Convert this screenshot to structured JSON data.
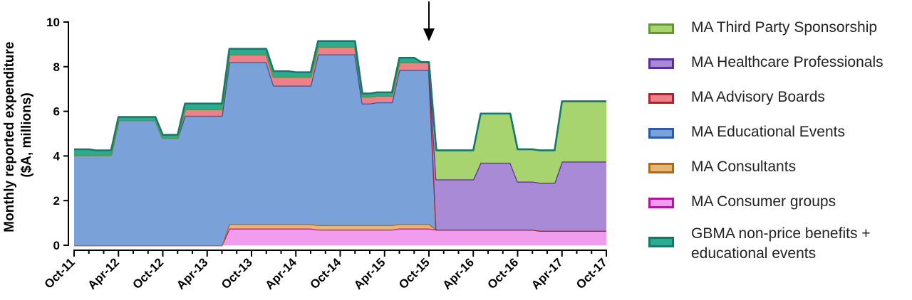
{
  "chart_data": {
    "type": "area",
    "stacked": true,
    "ylabel_line1": "Monthly reported expenditure",
    "ylabel_line2": "($A, millions)",
    "ylim": [
      0,
      10
    ],
    "yticks": [
      0,
      2,
      4,
      6,
      8,
      10
    ],
    "xtick_labels": [
      "Oct-11",
      "Apr-12",
      "Oct-12",
      "Apr-13",
      "Oct-13",
      "Apr-14",
      "Oct-14",
      "Apr-15",
      "Oct-15",
      "Apr-16",
      "Oct-16",
      "Apr-17",
      "Oct-17"
    ],
    "x_months": [
      0,
      1,
      2,
      3,
      4,
      5,
      6,
      7,
      8,
      9,
      10,
      11,
      12,
      13,
      14,
      15,
      16,
      17,
      18,
      19,
      20,
      21,
      22,
      23,
      24,
      25,
      26,
      27,
      28,
      29,
      30,
      31,
      32,
      33,
      34,
      35,
      36,
      37,
      38,
      39,
      40,
      41,
      42,
      43,
      44,
      45,
      46,
      47,
      48,
      49,
      50,
      51,
      52,
      53,
      54,
      55,
      56,
      57,
      58,
      59,
      60,
      61,
      62,
      63,
      64,
      65,
      66,
      67,
      68,
      69,
      70,
      71,
      72
    ],
    "annotation_arrow_at": "Oct-15",
    "legend_position": "right",
    "series": [
      {
        "name": "MA Consumer groups",
        "color": "#f19ded",
        "stroke": "#b8139e",
        "values": [
          0,
          0,
          0,
          0,
          0,
          0,
          0,
          0,
          0,
          0,
          0,
          0,
          0,
          0,
          0,
          0,
          0,
          0,
          0,
          0,
          0,
          0.75,
          0.75,
          0.75,
          0.75,
          0.75,
          0.75,
          0.75,
          0.75,
          0.75,
          0.75,
          0.75,
          0.75,
          0.7,
          0.7,
          0.7,
          0.7,
          0.7,
          0.7,
          0.7,
          0.7,
          0.7,
          0.7,
          0.7,
          0.75,
          0.75,
          0.75,
          0.75,
          0.75,
          0.7,
          0.7,
          0.7,
          0.7,
          0.7,
          0.7,
          0.7,
          0.7,
          0.7,
          0.7,
          0.7,
          0.7,
          0.7,
          0.7,
          0.65,
          0.65,
          0.65,
          0.65,
          0.65,
          0.65,
          0.65,
          0.65,
          0.65,
          0.65
        ]
      },
      {
        "name": "MA Consultants",
        "color": "#e7b676",
        "stroke": "#ad6a12",
        "values": [
          0,
          0,
          0,
          0,
          0,
          0,
          0,
          0,
          0,
          0,
          0,
          0,
          0,
          0,
          0,
          0,
          0,
          0,
          0,
          0,
          0,
          0.2,
          0.2,
          0.2,
          0.2,
          0.2,
          0.2,
          0.2,
          0.2,
          0.2,
          0.2,
          0.2,
          0.2,
          0.2,
          0.2,
          0.2,
          0.2,
          0.2,
          0.2,
          0.2,
          0.2,
          0.2,
          0.2,
          0.2,
          0.2,
          0.2,
          0.2,
          0.2,
          0.2,
          0,
          0,
          0,
          0,
          0,
          0,
          0,
          0,
          0,
          0,
          0,
          0,
          0,
          0,
          0,
          0,
          0,
          0,
          0,
          0,
          0,
          0,
          0,
          0
        ]
      },
      {
        "name": "MA Educational Events",
        "color": "#7ba2d8",
        "stroke": "#2b5aa6",
        "values": [
          4.05,
          4.05,
          4.05,
          4.05,
          4.05,
          4.05,
          5.6,
          5.6,
          5.6,
          5.6,
          5.6,
          5.6,
          4.8,
          4.8,
          4.8,
          5.8,
          5.8,
          5.8,
          5.8,
          5.8,
          5.8,
          7.25,
          7.25,
          7.25,
          7.25,
          7.25,
          7.25,
          6.2,
          6.2,
          6.2,
          6.2,
          6.2,
          6.2,
          7.65,
          7.65,
          7.65,
          7.65,
          7.65,
          7.65,
          5.45,
          5.45,
          5.5,
          5.5,
          5.5,
          6.9,
          6.9,
          6.9,
          6.9,
          6.9,
          0,
          0,
          0,
          0,
          0,
          0,
          0,
          0,
          0,
          0,
          0,
          0,
          0,
          0,
          0,
          0,
          0,
          0,
          0,
          0,
          0,
          0,
          0,
          0
        ]
      },
      {
        "name": "MA Advisory Boards",
        "color": "#ed8089",
        "stroke": "#b3202c",
        "values": [
          0,
          0,
          0,
          0,
          0,
          0,
          0,
          0,
          0,
          0,
          0,
          0,
          0,
          0,
          0,
          0.3,
          0.3,
          0.3,
          0.3,
          0.3,
          0.3,
          0.35,
          0.35,
          0.35,
          0.35,
          0.35,
          0.35,
          0.4,
          0.4,
          0.4,
          0.4,
          0.4,
          0.4,
          0.35,
          0.35,
          0.35,
          0.35,
          0.35,
          0.35,
          0.3,
          0.3,
          0.3,
          0.3,
          0.3,
          0.35,
          0.35,
          0.35,
          0.35,
          0.35,
          0,
          0,
          0,
          0,
          0,
          0,
          0,
          0,
          0,
          0,
          0,
          0,
          0,
          0,
          0,
          0,
          0,
          0,
          0,
          0,
          0,
          0,
          0,
          0
        ]
      },
      {
        "name": "MA Healthcare Professionals",
        "color": "#a98ad6",
        "stroke": "#5b2c9c",
        "values": [
          0,
          0,
          0,
          0,
          0,
          0,
          0,
          0,
          0,
          0,
          0,
          0,
          0,
          0,
          0,
          0,
          0,
          0,
          0,
          0,
          0,
          0,
          0,
          0,
          0,
          0,
          0,
          0,
          0,
          0,
          0,
          0,
          0,
          0,
          0,
          0,
          0,
          0,
          0,
          0,
          0,
          0,
          0,
          0,
          0,
          0,
          0,
          0,
          0,
          2.25,
          2.25,
          2.25,
          2.25,
          2.25,
          2.25,
          3.0,
          3.0,
          3.0,
          3.0,
          3.0,
          2.15,
          2.15,
          2.15,
          2.15,
          2.15,
          2.15,
          3.1,
          3.1,
          3.1,
          3.1,
          3.1,
          3.1,
          3.1
        ]
      },
      {
        "name": "MA Third Party Sponsorship",
        "color": "#a8d46f",
        "stroke": "#5f9b2a",
        "values": [
          0,
          0,
          0,
          0,
          0,
          0,
          0,
          0,
          0,
          0,
          0,
          0,
          0,
          0,
          0,
          0,
          0,
          0,
          0,
          0,
          0,
          0,
          0,
          0,
          0,
          0,
          0,
          0,
          0,
          0,
          0,
          0,
          0,
          0,
          0,
          0,
          0,
          0,
          0,
          0,
          0,
          0,
          0,
          0,
          0,
          0,
          0,
          0,
          0,
          1.3,
          1.3,
          1.3,
          1.3,
          1.3,
          1.3,
          2.2,
          2.2,
          2.2,
          2.2,
          2.2,
          1.45,
          1.45,
          1.45,
          1.45,
          1.45,
          1.45,
          2.7,
          2.7,
          2.7,
          2.7,
          2.7,
          2.7,
          2.7
        ]
      },
      {
        "name": "GBMA non-price benefits + educational events",
        "color": "#2bab92",
        "stroke": "#14786a",
        "values": [
          0.25,
          0.25,
          0.25,
          0.2,
          0.2,
          0.2,
          0.15,
          0.15,
          0.15,
          0.15,
          0.15,
          0.15,
          0.15,
          0.15,
          0.15,
          0.25,
          0.25,
          0.25,
          0.25,
          0.25,
          0.25,
          0.25,
          0.25,
          0.25,
          0.25,
          0.25,
          0.25,
          0.25,
          0.25,
          0.25,
          0.2,
          0.2,
          0.2,
          0.25,
          0.25,
          0.25,
          0.25,
          0.25,
          0.25,
          0.15,
          0.15,
          0.15,
          0.15,
          0.15,
          0.2,
          0.2,
          0.2,
          0,
          0,
          0,
          0,
          0,
          0,
          0,
          0,
          0,
          0,
          0,
          0,
          0,
          0,
          0,
          0,
          0,
          0,
          0,
          0,
          0,
          0,
          0,
          0,
          0,
          0
        ]
      }
    ],
    "legend_order": [
      {
        "line1": "MA Third Party Sponsorship",
        "line2": "",
        "series_index": 5
      },
      {
        "line1": "MA Healthcare Professionals",
        "line2": "",
        "series_index": 4
      },
      {
        "line1": "MA Advisory Boards",
        "line2": "",
        "series_index": 3
      },
      {
        "line1": "MA Educational Events",
        "line2": "",
        "series_index": 2
      },
      {
        "line1": "MA Consultants",
        "line2": "",
        "series_index": 1
      },
      {
        "line1": "MA Consumer groups",
        "line2": "",
        "series_index": 0
      },
      {
        "line1": "GBMA non-price benefits +",
        "line2": "educational events",
        "series_index": 6
      }
    ]
  }
}
